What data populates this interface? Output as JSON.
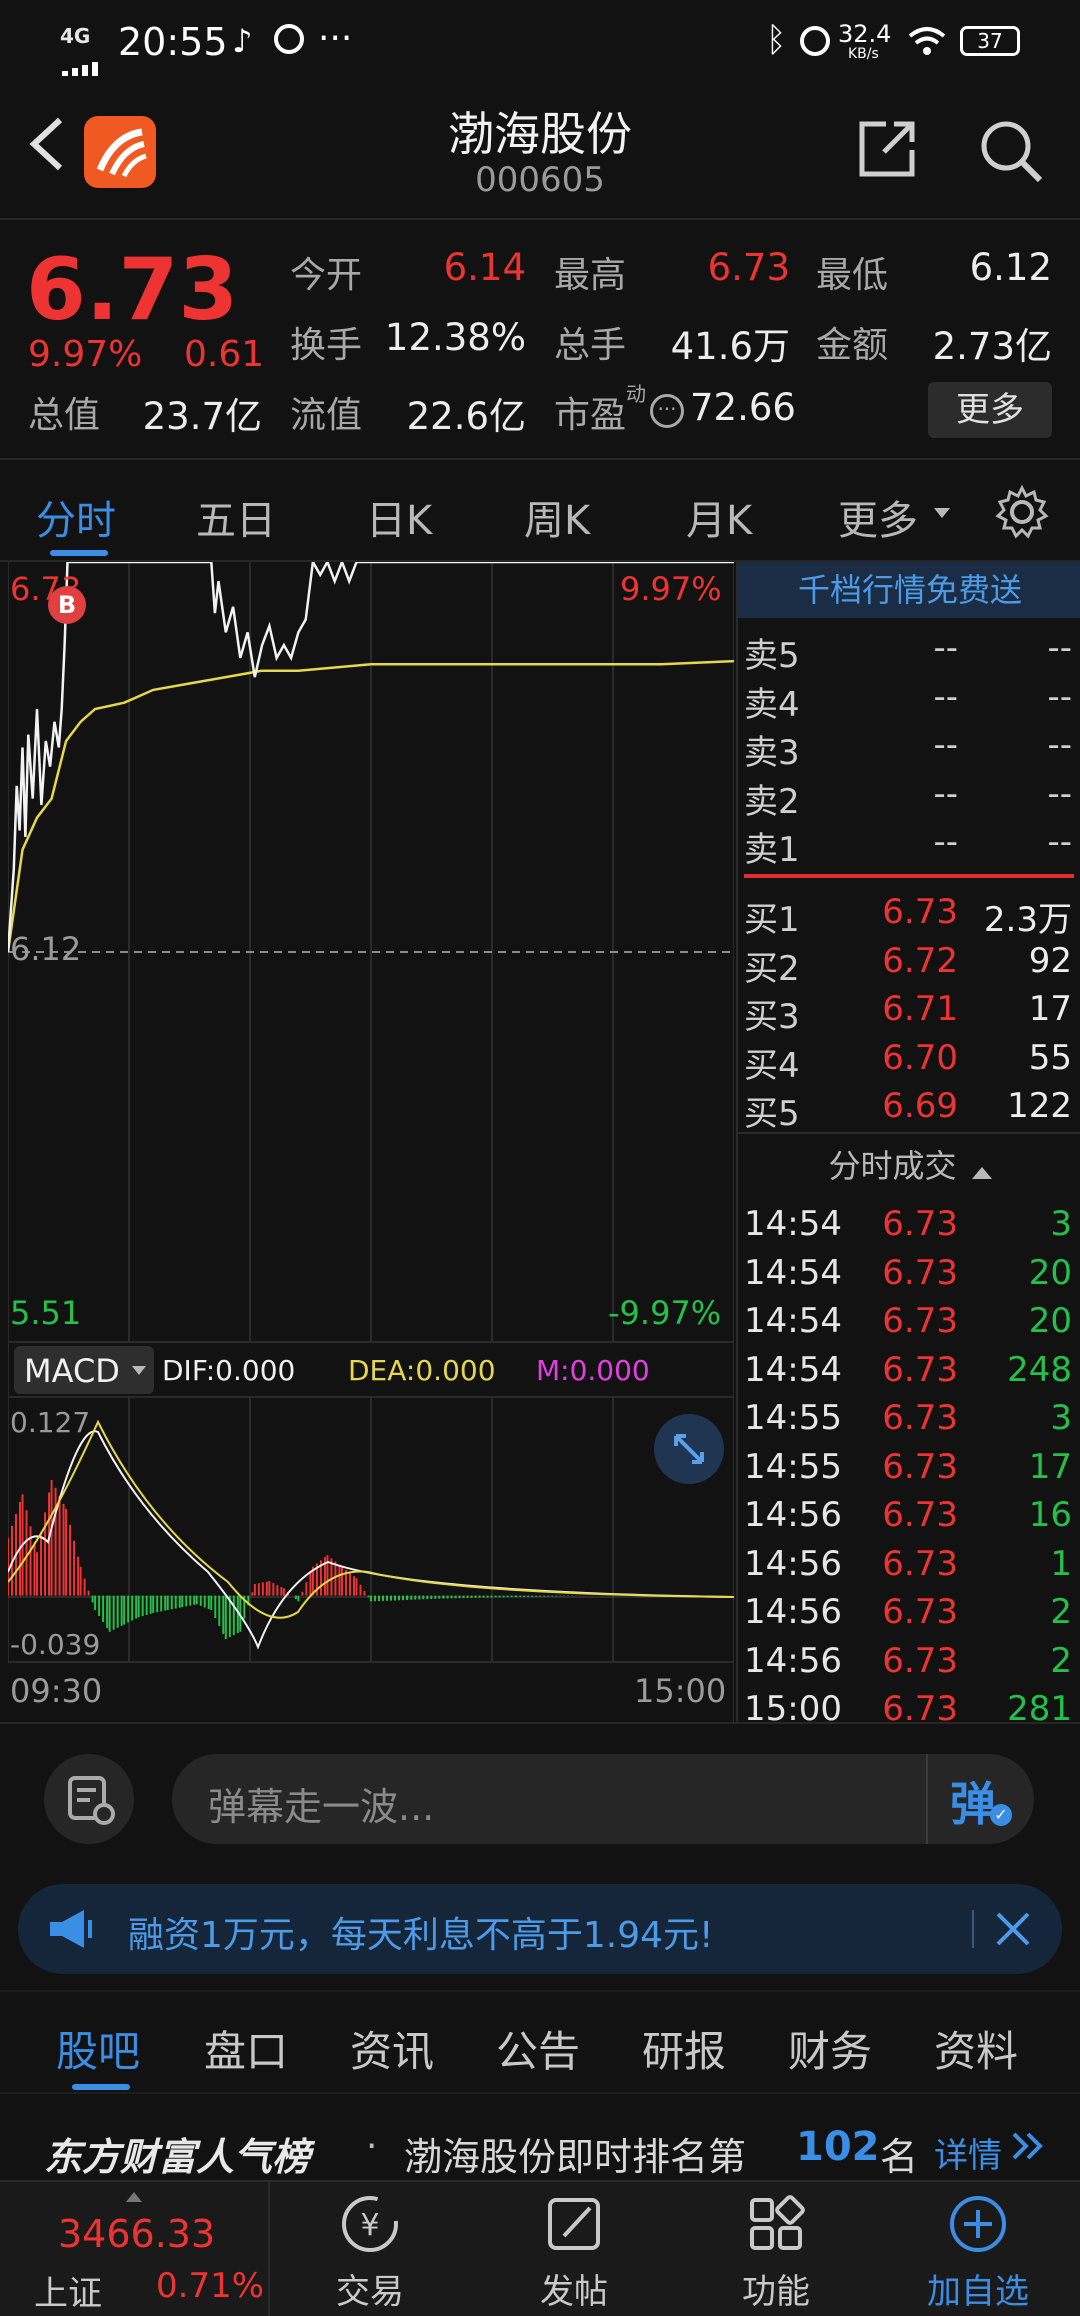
{
  "status_bar": {
    "network": "4G",
    "time": "20:55",
    "speed_value": "32.4",
    "speed_unit": "KB/s",
    "battery": "37"
  },
  "header": {
    "title": "渤海股份",
    "code": "000605"
  },
  "quote": {
    "price": "6.73",
    "change_pct": "9.97%",
    "change_abs": "0.61",
    "open_label": "今开",
    "open": "6.14",
    "high_label": "最高",
    "high": "6.73",
    "low_label": "最低",
    "low": "6.12",
    "turnover_label": "换手",
    "turnover": "12.38%",
    "volume_label": "总手",
    "volume": "41.6万",
    "amount_label": "金额",
    "amount": "2.73亿",
    "mcap_label": "总值",
    "mcap": "23.7亿",
    "float_label": "流值",
    "float": "22.6亿",
    "pe_label": "市盈",
    "pe_sup": "动",
    "pe": "72.66",
    "more_button": "更多"
  },
  "tabs": {
    "items": [
      "分时",
      "五日",
      "日K",
      "周K",
      "月K",
      "更多"
    ],
    "active": "分时"
  },
  "chart_labels": {
    "top_price": "6.73",
    "top_pct": "9.97%",
    "mid_price": "6.12",
    "bottom_price": "5.51",
    "bottom_pct": "-9.97%",
    "b_badge": "B",
    "macd_select": "MACD",
    "dif": "DIF:0.000",
    "dea": "DEA:0.000",
    "m": "M:0.000",
    "macd_top": "0.127",
    "macd_bottom": "-0.039",
    "time_start": "09:30",
    "time_end": "15:00"
  },
  "chart_data": [
    {
      "type": "line",
      "title": "",
      "xlabel": "",
      "ylabel": "",
      "x_range": [
        "09:30",
        "15:00"
      ],
      "ylim": [
        5.51,
        6.73
      ],
      "reference": 6.12,
      "series": [
        {
          "values_x_fraction": [
            0,
            0.008,
            0.012,
            0.016,
            0.02,
            0.024,
            0.028,
            0.034,
            0.04,
            0.046,
            0.052,
            0.058,
            0.064,
            0.07,
            0.074,
            0.078,
            0.082,
            0.09,
            0.1,
            0.14,
            0.2,
            0.26,
            0.28,
            0.285,
            0.29,
            0.3,
            0.31,
            0.32,
            0.33,
            0.34,
            0.35,
            0.36,
            0.37,
            0.38,
            0.39,
            0.4,
            0.41,
            0.42,
            0.43,
            0.44,
            0.45,
            0.46,
            0.47,
            0.48,
            0.49,
            0.5,
            1
          ],
          "values": [
            6.12,
            6.25,
            6.38,
            6.31,
            6.44,
            6.3,
            6.46,
            6.36,
            6.5,
            6.35,
            6.45,
            6.41,
            6.48,
            6.44,
            6.5,
            6.6,
            6.73,
            6.73,
            6.73,
            6.73,
            6.73,
            6.73,
            6.73,
            6.65,
            6.7,
            6.62,
            6.66,
            6.58,
            6.62,
            6.55,
            6.6,
            6.63,
            6.58,
            6.6,
            6.58,
            6.62,
            6.64,
            6.73,
            6.71,
            6.73,
            6.7,
            6.73,
            6.7,
            6.73,
            6.73,
            6.73,
            6.73
          ]
        },
        {
          "values_x_fraction": [
            0,
            0.02,
            0.04,
            0.06,
            0.08,
            0.1,
            0.12,
            0.16,
            0.2,
            0.25,
            0.3,
            0.35,
            0.4,
            0.5,
            0.6,
            0.7,
            0.8,
            0.9,
            1
          ],
          "values": [
            6.12,
            6.28,
            6.33,
            6.36,
            6.45,
            6.48,
            6.5,
            6.51,
            6.53,
            6.54,
            6.55,
            6.56,
            6.56,
            6.57,
            6.57,
            6.57,
            6.57,
            6.57,
            6.575
          ]
        }
      ]
    },
    {
      "type": "bar",
      "title": "",
      "xlabel": "",
      "ylabel": "",
      "ylim": [
        -0.039,
        0.127
      ],
      "series": [
        {
          "values_x_fraction": [
            0.0,
            0.02,
            0.04,
            0.06,
            0.08,
            0.1,
            0.12,
            0.14,
            0.16,
            0.18,
            0.2,
            0.22,
            0.24,
            0.26,
            0.28,
            0.3,
            0.32,
            0.34,
            0.36,
            0.38,
            0.4,
            0.42,
            0.44,
            0.46,
            0.48,
            0.5,
            0.55,
            0.6,
            0.7,
            0.8,
            0.9,
            1.0
          ],
          "values": [
            0.04,
            0.07,
            0.03,
            0.08,
            0.06,
            0.02,
            -0.01,
            -0.025,
            -0.02,
            -0.015,
            -0.012,
            -0.01,
            -0.008,
            -0.006,
            -0.01,
            -0.03,
            -0.025,
            0.008,
            0.01,
            0.005,
            -0.004,
            0.02,
            0.028,
            0.02,
            0.012,
            -0.004,
            -0.003,
            -0.002,
            -0.001,
            0,
            0,
            0
          ]
        }
      ]
    }
  ],
  "order_book": {
    "promo": "千档行情免费送",
    "sells": [
      {
        "label": "卖5",
        "price": "--",
        "vol": "--"
      },
      {
        "label": "卖4",
        "price": "--",
        "vol": "--"
      },
      {
        "label": "卖3",
        "price": "--",
        "vol": "--"
      },
      {
        "label": "卖2",
        "price": "--",
        "vol": "--"
      },
      {
        "label": "卖1",
        "price": "--",
        "vol": "--"
      }
    ],
    "buys": [
      {
        "label": "买1",
        "price": "6.73",
        "vol": "2.3万"
      },
      {
        "label": "买2",
        "price": "6.72",
        "vol": "92"
      },
      {
        "label": "买3",
        "price": "6.71",
        "vol": "17"
      },
      {
        "label": "买4",
        "price": "6.70",
        "vol": "55"
      },
      {
        "label": "买5",
        "price": "6.69",
        "vol": "122"
      }
    ],
    "trades_header": "分时成交",
    "trades": [
      {
        "time": "14:54",
        "price": "6.73",
        "vol": "3"
      },
      {
        "time": "14:54",
        "price": "6.73",
        "vol": "20"
      },
      {
        "time": "14:54",
        "price": "6.73",
        "vol": "20"
      },
      {
        "time": "14:54",
        "price": "6.73",
        "vol": "248"
      },
      {
        "time": "14:55",
        "price": "6.73",
        "vol": "3"
      },
      {
        "time": "14:55",
        "price": "6.73",
        "vol": "17"
      },
      {
        "time": "14:56",
        "price": "6.73",
        "vol": "16"
      },
      {
        "time": "14:56",
        "price": "6.73",
        "vol": "1"
      },
      {
        "time": "14:56",
        "price": "6.73",
        "vol": "2"
      },
      {
        "time": "14:56",
        "price": "6.73",
        "vol": "2"
      },
      {
        "time": "15:00",
        "price": "6.73",
        "vol": "281"
      }
    ]
  },
  "danmu": {
    "placeholder": "弹幕走一波...",
    "send_label": "弹"
  },
  "ad": {
    "text": "融资1万元，每天利息不高于1.94元!"
  },
  "news_tabs": {
    "items": [
      "股吧",
      "盘口",
      "资讯",
      "公告",
      "研报",
      "财务",
      "资料"
    ],
    "active": "股吧"
  },
  "ranking": {
    "brand": "东方财富人气榜",
    "dot": "·",
    "text": "渤海股份即时排名第",
    "rank": "102",
    "unit": "名",
    "link": "详情"
  },
  "bottom_nav": {
    "index_value": "3466.33",
    "index_name": "上证",
    "index_pct": "0.71%",
    "items": [
      "交易",
      "发帖",
      "功能",
      "加自选"
    ]
  },
  "colors": {
    "up": "#ee3333",
    "down": "#25c04a",
    "avg_line": "#e6d84a",
    "accent": "#3a8ee6",
    "logo": "#f05a22"
  }
}
